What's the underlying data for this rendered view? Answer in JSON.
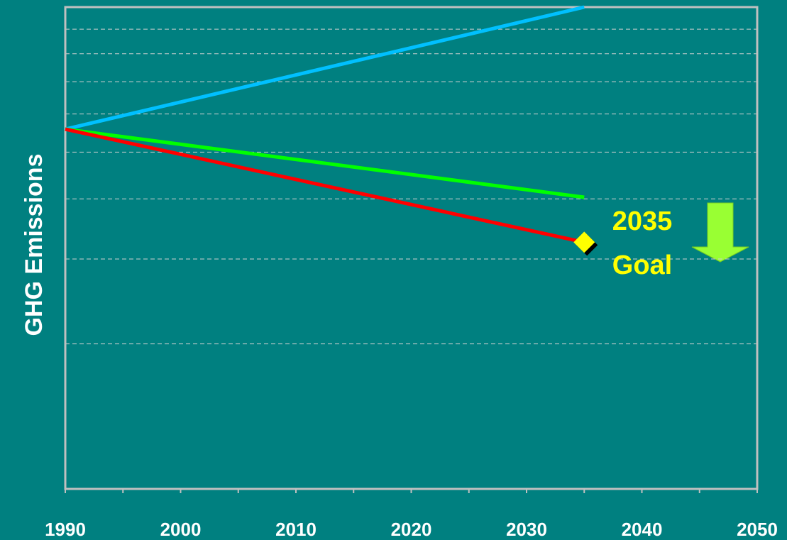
{
  "chart_data": {
    "type": "line",
    "y_label": "GHG Emissions",
    "x": [
      1990,
      2035
    ],
    "series": [
      {
        "color": "#00c0ff",
        "values": [
          5.58,
          10
        ]
      },
      {
        "color": "#00ff00",
        "values": [
          5.58,
          4.03
        ]
      },
      {
        "color": "#ff0000",
        "values": [
          5.58,
          3.25
        ]
      }
    ],
    "goal": {
      "x": 2035,
      "value": 3.25,
      "color": "#ffff00"
    },
    "annotation": [
      "2035",
      "Goal"
    ],
    "xlim": [
      1990,
      2050
    ],
    "xticks": [
      1990,
      2000,
      2010,
      2020,
      2030,
      2040,
      2050
    ],
    "xminor": [
      1995,
      2005,
      2015,
      2025,
      2035,
      2045
    ],
    "ylim": [
      1,
      10
    ],
    "log_y": true,
    "ygrid": [
      2,
      3,
      4,
      5,
      6,
      7,
      8,
      9
    ]
  }
}
